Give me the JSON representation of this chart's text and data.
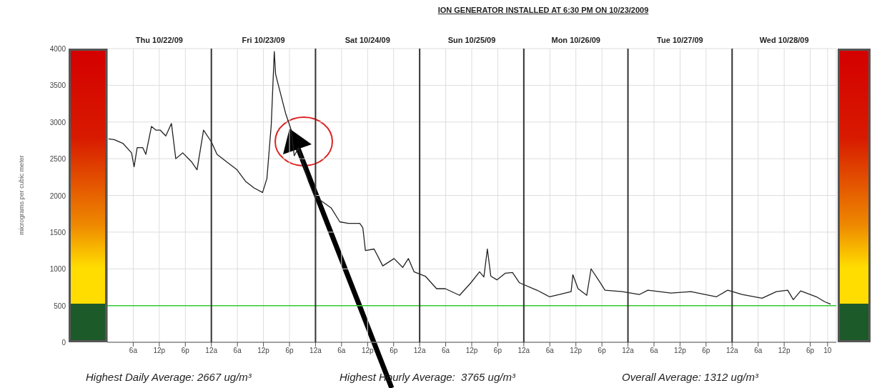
{
  "chart_data": {
    "type": "line",
    "title": "ION GENERATOR INSTALLED AT 6:30 PM ON 10/23/2009",
    "ylabel": "micrograms per cubic meter",
    "color": "#222222",
    "x": [
      "2009-10-22T00:18",
      "2009-10-22T01:36",
      "2009-10-22T03:36",
      "2009-10-22T05:36",
      "2009-10-22T06:12",
      "2009-10-22T06:54",
      "2009-10-22T08:12",
      "2009-10-22T08:54",
      "2009-10-22T10:12",
      "2009-10-22T11:12",
      "2009-10-22T12:12",
      "2009-10-22T13:30",
      "2009-10-22T14:48",
      "2009-10-22T15:48",
      "2009-10-22T17:24",
      "2009-10-22T19:24",
      "2009-10-22T20:42",
      "2009-10-22T22:12",
      "2009-10-23T00:00",
      "2009-10-23T01:18",
      "2009-10-23T03:54",
      "2009-10-23T05:54",
      "2009-10-23T07:54",
      "2009-10-23T09:54",
      "2009-10-23T11:48",
      "2009-10-23T12:48",
      "2009-10-23T13:48",
      "2009-10-23T14:30",
      "2009-10-23T14:48",
      "2009-10-23T15:48",
      "2009-10-23T17:06",
      "2009-10-23T18:24",
      "2009-10-23T19:06",
      "2009-10-23T20:06",
      "2009-10-23T21:00",
      "2009-10-23T22:24",
      "2009-10-23T23:42",
      "2009-10-24T01:00",
      "2009-10-24T03:36",
      "2009-10-24T05:36",
      "2009-10-24T07:36",
      "2009-10-24T10:12",
      "2009-10-24T10:54",
      "2009-10-24T11:30",
      "2009-10-24T13:30",
      "2009-10-24T15:30",
      "2009-10-24T18:06",
      "2009-10-24T20:06",
      "2009-10-24T21:24",
      "2009-10-24T22:42",
      "2009-10-25T01:18",
      "2009-10-25T03:54",
      "2009-10-25T05:54",
      "2009-10-25T09:12",
      "2009-10-25T11:48",
      "2009-10-25T13:48",
      "2009-10-25T14:48",
      "2009-10-25T15:36",
      "2009-10-25T16:24",
      "2009-10-25T17:48",
      "2009-10-25T19:42",
      "2009-10-25T21:24",
      "2009-10-25T23:00",
      "2009-10-26T03:00",
      "2009-10-26T05:54",
      "2009-10-26T08:12",
      "2009-10-26T10:54",
      "2009-10-26T11:18",
      "2009-10-26T12:30",
      "2009-10-26T14:30",
      "2009-10-26T15:30",
      "2009-10-26T17:24",
      "2009-10-26T18:42",
      "2009-10-26T22:42",
      "2009-10-27T02:36",
      "2009-10-27T04:36",
      "2009-10-27T09:54",
      "2009-10-27T14:30",
      "2009-10-27T20:24",
      "2009-10-27T23:00",
      "2009-10-28T02:18",
      "2009-10-28T06:54",
      "2009-10-28T10:12",
      "2009-10-28T12:48",
      "2009-10-28T14:06",
      "2009-10-28T15:48",
      "2009-10-28T19:24",
      "2009-10-28T21:24",
      "2009-10-28T22:42"
    ],
    "values": [
      2770,
      2760,
      2710,
      2580,
      2390,
      2650,
      2650,
      2560,
      2940,
      2890,
      2890,
      2810,
      2980,
      2500,
      2580,
      2460,
      2350,
      2890,
      2730,
      2560,
      2440,
      2350,
      2190,
      2100,
      2040,
      2230,
      2960,
      3960,
      3650,
      3420,
      3120,
      2890,
      2540,
      2650,
      2460,
      2190,
      2000,
      1940,
      1830,
      1640,
      1620,
      1620,
      1560,
      1250,
      1270,
      1040,
      1140,
      1020,
      1140,
      960,
      900,
      730,
      730,
      640,
      810,
      960,
      890,
      1270,
      900,
      850,
      940,
      950,
      810,
      710,
      620,
      650,
      690,
      920,
      730,
      640,
      1000,
      830,
      710,
      690,
      650,
      710,
      670,
      690,
      620,
      710,
      650,
      600,
      690,
      710,
      580,
      700,
      620,
      550,
      520
    ],
    "xlim": [
      "2009-10-22T00:00",
      "2009-10-29T00:00"
    ],
    "xticks": [
      {
        "value": "2009-10-22T06:00",
        "label": "6a"
      },
      {
        "value": "2009-10-22T12:00",
        "label": "12p"
      },
      {
        "value": "2009-10-22T18:00",
        "label": "6p"
      },
      {
        "value": "2009-10-23T00:00",
        "label": "12a"
      },
      {
        "value": "2009-10-23T06:00",
        "label": "6a"
      },
      {
        "value": "2009-10-23T12:00",
        "label": "12p"
      },
      {
        "value": "2009-10-23T18:00",
        "label": "6p"
      },
      {
        "value": "2009-10-24T00:00",
        "label": "12a"
      },
      {
        "value": "2009-10-24T06:00",
        "label": "6a"
      },
      {
        "value": "2009-10-24T12:00",
        "label": "12p"
      },
      {
        "value": "2009-10-24T18:00",
        "label": "6p"
      },
      {
        "value": "2009-10-25T00:00",
        "label": "12a"
      },
      {
        "value": "2009-10-25T06:00",
        "label": "6a"
      },
      {
        "value": "2009-10-25T12:00",
        "label": "12p"
      },
      {
        "value": "2009-10-25T18:00",
        "label": "6p"
      },
      {
        "value": "2009-10-26T00:00",
        "label": "12a"
      },
      {
        "value": "2009-10-26T06:00",
        "label": "6a"
      },
      {
        "value": "2009-10-26T12:00",
        "label": "12p"
      },
      {
        "value": "2009-10-26T18:00",
        "label": "6p"
      },
      {
        "value": "2009-10-27T00:00",
        "label": "12a"
      },
      {
        "value": "2009-10-27T06:00",
        "label": "6a"
      },
      {
        "value": "2009-10-27T12:00",
        "label": "12p"
      },
      {
        "value": "2009-10-27T18:00",
        "label": "6p"
      },
      {
        "value": "2009-10-28T00:00",
        "label": "12a"
      },
      {
        "value": "2009-10-28T06:00",
        "label": "6a"
      },
      {
        "value": "2009-10-28T12:00",
        "label": "12p"
      },
      {
        "value": "2009-10-28T18:00",
        "label": "6p"
      },
      {
        "value": "2009-10-28T22:00",
        "label": "10"
      }
    ],
    "x2lim": [
      "2009-10-22T00:00",
      "2009-10-29T00:00"
    ],
    "x2ticks": [
      {
        "value": "2009-10-23T00:00",
        "label": null
      },
      {
        "value": "2009-10-24T00:00",
        "label": null
      },
      {
        "value": "2009-10-25T00:00",
        "label": null
      },
      {
        "value": "2009-10-26T00:00",
        "label": null
      },
      {
        "value": "2009-10-27T00:00",
        "label": null
      },
      {
        "value": "2009-10-28T00:00",
        "label": null
      },
      {
        "value": "2009-10-22T12:00",
        "label": "Thu 10/22/09"
      },
      {
        "value": "2009-10-23T12:00",
        "label": "Fri 10/23/09"
      },
      {
        "value": "2009-10-24T12:00",
        "label": "Sat 10/24/09"
      },
      {
        "value": "2009-10-25T12:00",
        "label": "Sun 10/25/09"
      },
      {
        "value": "2009-10-26T12:00",
        "label": "Mon 10/26/09"
      },
      {
        "value": "2009-10-27T12:00",
        "label": "Tue 10/27/09"
      },
      {
        "value": "2009-10-28T12:00",
        "label": "Wed 10/28/09"
      }
    ],
    "ylim": [
      0,
      4000
    ],
    "yticks": [
      0,
      500,
      1000,
      1500,
      2000,
      2500,
      3000,
      3500,
      4000
    ],
    "grid": true,
    "ref_lines": [
      {
        "axis": "y",
        "value": 500,
        "color": "#33cc33"
      }
    ],
    "annotations": [
      "Highest Daily Average: 2667 ug/m³",
      "Highest Hourly Average:  3765 ug/m³",
      "Overall Average: 1312 ug/m³"
    ]
  }
}
